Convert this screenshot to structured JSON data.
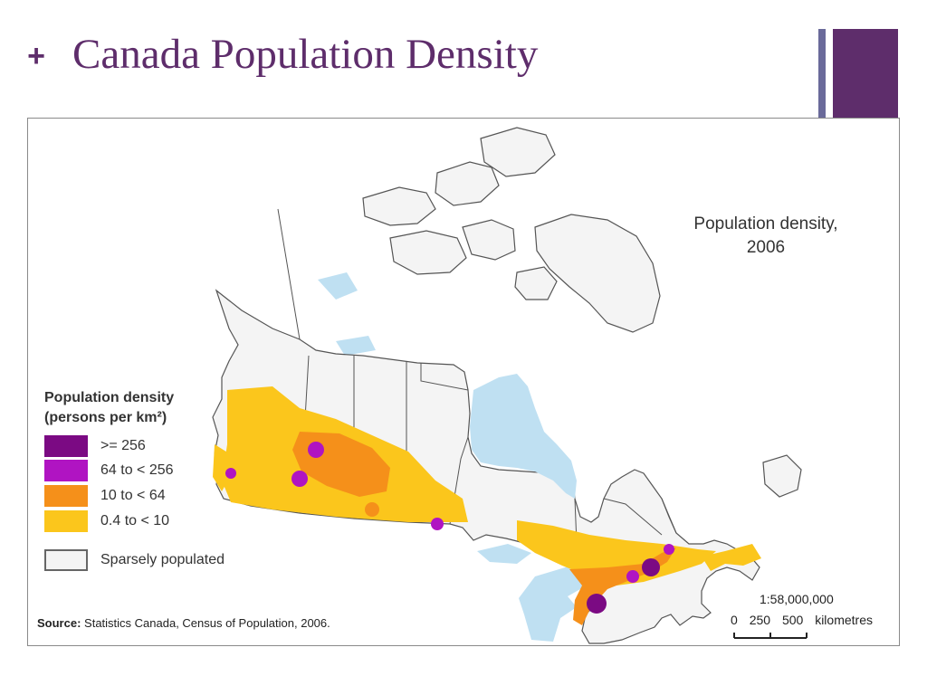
{
  "slide": {
    "title": "Canada Population Density",
    "bullet_icon": "plus-icon",
    "accent_color": "#5e2d6b",
    "accent_thin_color": "#6a6a9a"
  },
  "map": {
    "title_line1": "Population density,",
    "title_line2": "2006",
    "legend": {
      "title_line1": "Population density",
      "title_line2": "(persons per km²)",
      "items": [
        {
          "label": ">= 256",
          "color": "#7b0a83"
        },
        {
          "label": "64 to < 256",
          "color": "#b014c2"
        },
        {
          "label": "10 to < 64",
          "color": "#f5901a"
        },
        {
          "label": "0.4 to < 10",
          "color": "#fbc61c"
        }
      ],
      "sparse_label": "Sparsely populated",
      "sparse_color": "#f4f4f4"
    },
    "source_label": "Source:",
    "source_text": "Statistics Canada, Census of Population, 2006.",
    "scale": {
      "ratio": "1:58,000,000",
      "ticks": [
        "0",
        "250",
        "500"
      ],
      "unit": "kilometres"
    },
    "colors": {
      "land": "#f4f4f4",
      "border": "#555555",
      "water": "#bfe0f2"
    }
  }
}
